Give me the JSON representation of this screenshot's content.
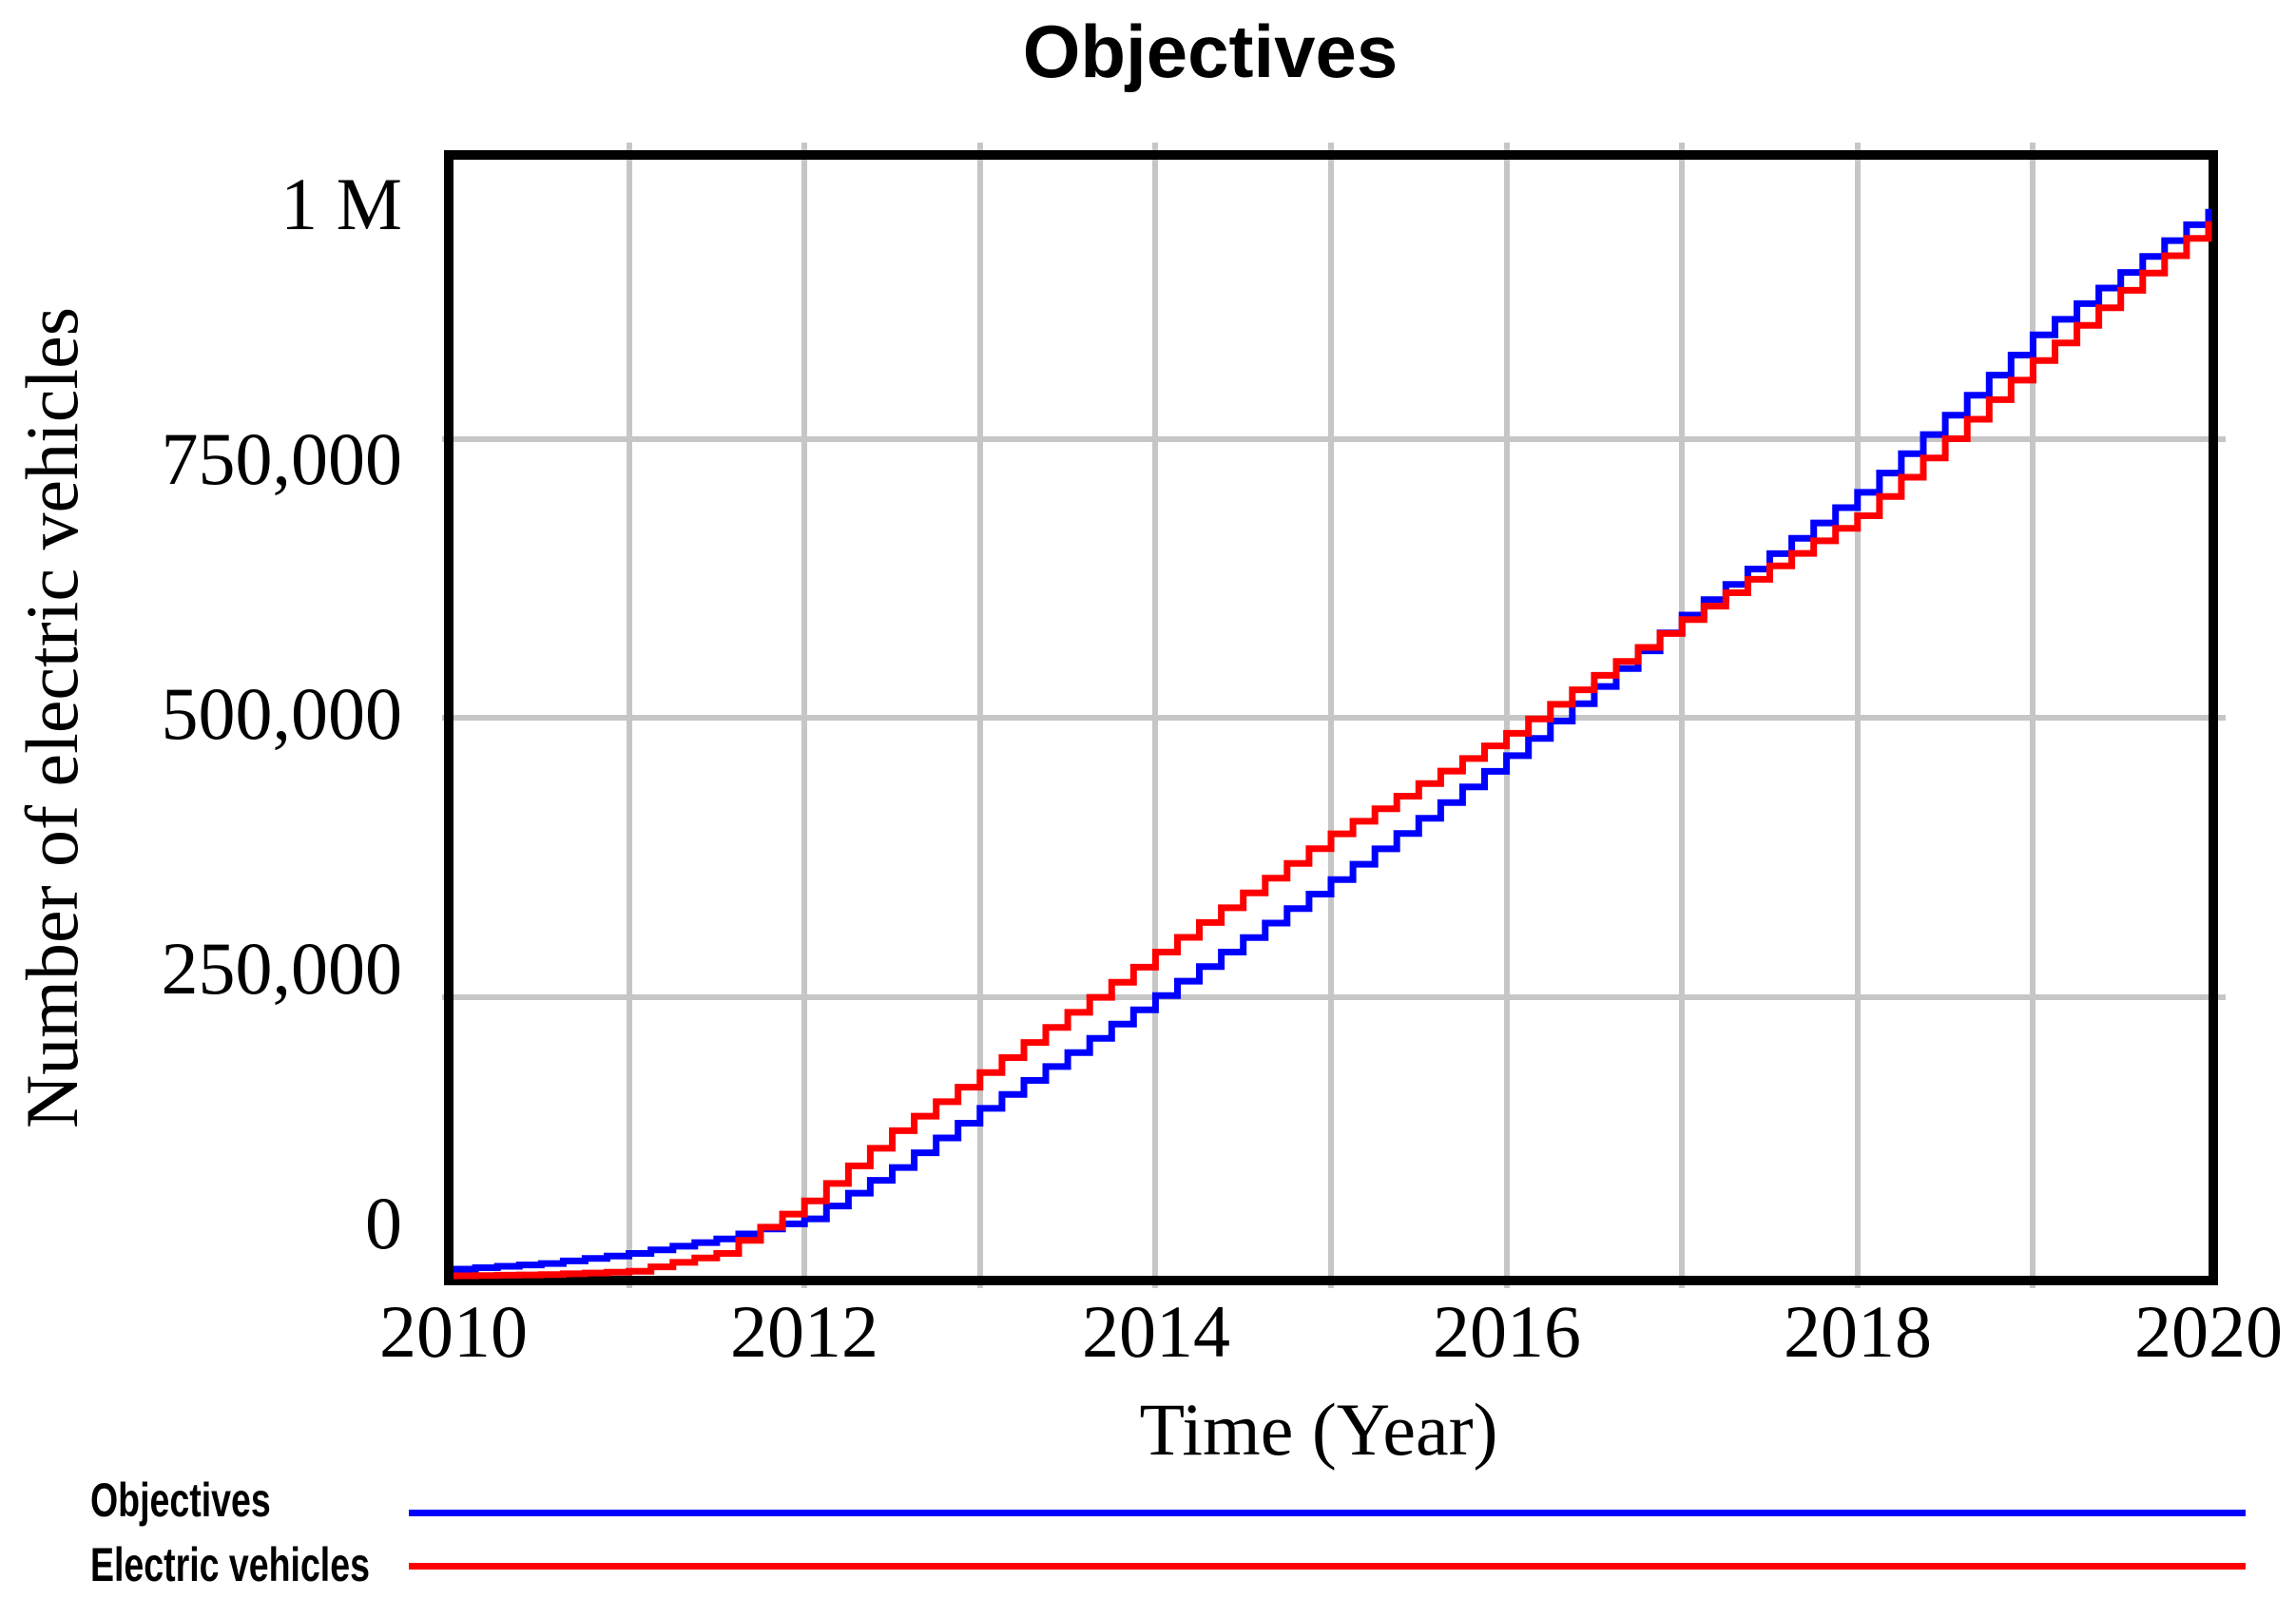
{
  "chart_title": "Objectives",
  "y_axis": {
    "title": "Number of electric vehicles",
    "ticks": [
      "1 M",
      "750,000",
      "500,000",
      "250,000",
      "0"
    ]
  },
  "x_axis": {
    "title": "Time (Year)",
    "ticks": [
      "2010",
      "2012",
      "2014",
      "2016",
      "2018",
      "2020"
    ]
  },
  "legend": {
    "items": [
      {
        "label": "Objectives",
        "color": "#0000ff"
      },
      {
        "label": "Electric vehicles",
        "color": "#ff0000"
      }
    ]
  },
  "colors": {
    "objectives_line": "#0000ff",
    "electric_vehicles_line": "#ff0000",
    "gridline": "#c6c6c6",
    "plot_border": "#000000",
    "background": "#ffffff",
    "text": "#000000"
  },
  "chart_data": {
    "type": "line",
    "title": "Objectives",
    "xlabel": "Time (Year)",
    "ylabel": "Number of electric vehicles",
    "xlim": [
      2010,
      2020
    ],
    "ylim": [
      0,
      1000000
    ],
    "x_tick_values": [
      2010,
      2012,
      2014,
      2016,
      2018,
      2020
    ],
    "y_tick_values": [
      0,
      250000,
      500000,
      750000,
      1000000
    ],
    "grid": true,
    "grid_x_interval_years": 1,
    "line_style": "simulation-steps",
    "legend_position": "bottom-left",
    "series": [
      {
        "name": "Objectives",
        "color": "#0000ff",
        "points": [
          [
            2010,
            6000
          ],
          [
            2010.5,
            11000
          ],
          [
            2011,
            20000
          ],
          [
            2011.5,
            33000
          ],
          [
            2012,
            51000
          ],
          [
            2012.5,
            97000
          ],
          [
            2013,
            150000
          ],
          [
            2013.5,
            200000
          ],
          [
            2014,
            251000
          ],
          [
            2014.5,
            303000
          ],
          [
            2015,
            355000
          ],
          [
            2015.5,
            410000
          ],
          [
            2016,
            466000
          ],
          [
            2016.5,
            528000
          ],
          [
            2017,
            592000
          ],
          [
            2017.5,
            647000
          ],
          [
            2018,
            702000
          ],
          [
            2018.5,
            771000
          ],
          [
            2019,
            843000
          ],
          [
            2019.5,
            899000
          ],
          [
            2020,
            956000
          ]
        ]
      },
      {
        "name": "Electric vehicles",
        "color": "#ff0000",
        "points": [
          [
            2010,
            0
          ],
          [
            2010.5,
            1000
          ],
          [
            2011,
            4000
          ],
          [
            2011.5,
            20000
          ],
          [
            2012,
            67000
          ],
          [
            2012.5,
            130000
          ],
          [
            2013,
            182000
          ],
          [
            2013.5,
            236000
          ],
          [
            2014,
            290000
          ],
          [
            2014.5,
            343000
          ],
          [
            2015,
            396000
          ],
          [
            2015.5,
            441000
          ],
          [
            2016,
            486000
          ],
          [
            2016.5,
            538000
          ],
          [
            2017,
            588000
          ],
          [
            2017.5,
            636000
          ],
          [
            2018,
            681000
          ],
          [
            2018.5,
            750000
          ],
          [
            2019,
            820000
          ],
          [
            2019.5,
            883000
          ],
          [
            2020,
            945000
          ]
        ]
      }
    ]
  }
}
